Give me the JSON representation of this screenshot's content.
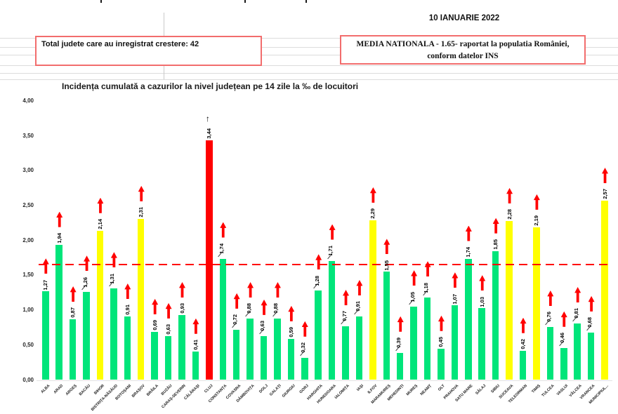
{
  "header": {
    "date": "10 IANUARIE 2022",
    "total_box_text": "Total judete care au inregistrat crestere: 42",
    "media_box_line1": "MEDIA NATIONALA - 1.65- raportat la populatia României,",
    "media_box_line2": "conform datelor INS",
    "box_border_color": "#f26d6d"
  },
  "chart_data": {
    "type": "bar",
    "title": "Incidența cumulată a cazurilor la nivel județean pe 14 zile la ‰ de locuitori",
    "xlabel": "",
    "ylabel": "",
    "ylim": [
      0,
      4
    ],
    "ytick_labels": [
      "0,00",
      "0,50",
      "1,00",
      "1,50",
      "2,00",
      "2,50",
      "3,00",
      "3,50",
      "4,00"
    ],
    "grid": false,
    "legend_position": "none",
    "reference_line": {
      "value": 1.65,
      "color": "#ff0000",
      "style": "dashed",
      "meaning": "media nationala"
    },
    "palette": {
      "green": "#00e57a",
      "yellow": "#ffff00",
      "red": "#ff0000"
    },
    "arrow": {
      "default_style": "red-block-up",
      "exception_category": "CLUJ",
      "exception_style": "black-text-up",
      "glyph": "↑"
    },
    "bars": [
      {
        "category": "ALBA",
        "value": 1.27,
        "label": "1,27",
        "color": "green",
        "leader": false
      },
      {
        "category": "ARAD",
        "value": 1.94,
        "label": "1,94",
        "color": "green",
        "leader": false
      },
      {
        "category": "ARGEȘ",
        "value": 0.87,
        "label": "0,87",
        "color": "green",
        "leader": false
      },
      {
        "category": "BACĂU",
        "value": 1.26,
        "label": "1,26",
        "color": "green",
        "leader": true
      },
      {
        "category": "BIHOR",
        "value": 2.14,
        "label": "2,14",
        "color": "yellow",
        "leader": false
      },
      {
        "category": "BISTRIȚA-NĂSĂUD",
        "value": 1.31,
        "label": "1,31",
        "color": "green",
        "leader": true
      },
      {
        "category": "BOTOȘANI",
        "value": 0.91,
        "label": "0,91",
        "color": "green",
        "leader": false
      },
      {
        "category": "BRAȘOV",
        "value": 2.31,
        "label": "2,31",
        "color": "yellow",
        "leader": false
      },
      {
        "category": "BRĂILA",
        "value": 0.69,
        "label": "0,69",
        "color": "green",
        "leader": false
      },
      {
        "category": "BUZĂU",
        "value": 0.63,
        "label": "0,63",
        "color": "green",
        "leader": false
      },
      {
        "category": "CARAȘ-SEVERIN",
        "value": 0.93,
        "label": "0,93",
        "color": "green",
        "leader": false
      },
      {
        "category": "CĂLĂRAȘI",
        "value": 0.41,
        "label": "0,41",
        "color": "green",
        "leader": false
      },
      {
        "category": "CLUJ",
        "value": 3.44,
        "label": "3,44",
        "color": "red",
        "leader": false
      },
      {
        "category": "CONSTANȚA",
        "value": 1.74,
        "label": "1,74",
        "color": "green",
        "leader": true
      },
      {
        "category": "COVASNA",
        "value": 0.72,
        "label": "0,72",
        "color": "green",
        "leader": true
      },
      {
        "category": "DÂMBOVIȚA",
        "value": 0.88,
        "label": "0,88",
        "color": "green",
        "leader": true
      },
      {
        "category": "DOLJ",
        "value": 0.63,
        "label": "0,63",
        "color": "green",
        "leader": true
      },
      {
        "category": "GALAȚI",
        "value": 0.88,
        "label": "0,88",
        "color": "green",
        "leader": true
      },
      {
        "category": "GIURGIU",
        "value": 0.59,
        "label": "0,59",
        "color": "green",
        "leader": false
      },
      {
        "category": "GORJ",
        "value": 0.32,
        "label": "0,32",
        "color": "green",
        "leader": true
      },
      {
        "category": "HARGHITA",
        "value": 1.28,
        "label": "1,28",
        "color": "green",
        "leader": true
      },
      {
        "category": "HUNEDOARA",
        "value": 1.71,
        "label": "1,71",
        "color": "green",
        "leader": true
      },
      {
        "category": "IALOMIȚA",
        "value": 0.77,
        "label": "0,77",
        "color": "green",
        "leader": true
      },
      {
        "category": "IAȘI",
        "value": 0.91,
        "label": "0,91",
        "color": "green",
        "leader": true
      },
      {
        "category": "ILFOV",
        "value": 2.29,
        "label": "2,29",
        "color": "yellow",
        "leader": false
      },
      {
        "category": "MARAMUREȘ",
        "value": 1.55,
        "label": "1,55",
        "color": "green",
        "leader": false
      },
      {
        "category": "MEHEDINȚI",
        "value": 0.39,
        "label": "0,39",
        "color": "green",
        "leader": true
      },
      {
        "category": "MUREȘ",
        "value": 1.05,
        "label": "1,05",
        "color": "green",
        "leader": true
      },
      {
        "category": "NEAMȚ",
        "value": 1.18,
        "label": "1,18",
        "color": "green",
        "leader": true
      },
      {
        "category": "OLT",
        "value": 0.45,
        "label": "0,45",
        "color": "green",
        "leader": false
      },
      {
        "category": "PRAHOVA",
        "value": 1.07,
        "label": "1,07",
        "color": "green",
        "leader": false
      },
      {
        "category": "SATU MARE",
        "value": 1.74,
        "label": "1,74",
        "color": "green",
        "leader": false
      },
      {
        "category": "SĂLAJ",
        "value": 1.03,
        "label": "1,03",
        "color": "green",
        "leader": false
      },
      {
        "category": "SIBIU",
        "value": 1.85,
        "label": "1,85",
        "color": "green",
        "leader": false
      },
      {
        "category": "SUCEAVA",
        "value": 2.28,
        "label": "2,28",
        "color": "yellow",
        "leader": false
      },
      {
        "category": "TELEORMAN",
        "value": 0.42,
        "label": "0,42",
        "color": "green",
        "leader": false
      },
      {
        "category": "TIMIȘ",
        "value": 2.19,
        "label": "2,19",
        "color": "yellow",
        "leader": false
      },
      {
        "category": "TULCEA",
        "value": 0.76,
        "label": "0,76",
        "color": "green",
        "leader": true
      },
      {
        "category": "VASLUI",
        "value": 0.46,
        "label": "0,46",
        "color": "green",
        "leader": true
      },
      {
        "category": "VÂLCEA",
        "value": 0.81,
        "label": "0,81",
        "color": "green",
        "leader": true
      },
      {
        "category": "VRANCEA",
        "value": 0.68,
        "label": "0,68",
        "color": "green",
        "leader": true
      },
      {
        "category": "MUNICIPIUL...",
        "value": 2.57,
        "label": "2,57",
        "color": "yellow",
        "leader": false
      }
    ]
  }
}
